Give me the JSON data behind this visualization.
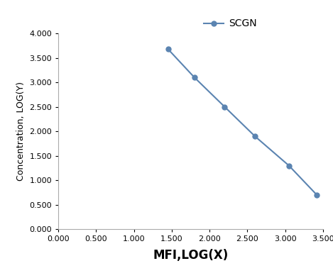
{
  "x": [
    1.45,
    1.8,
    2.2,
    2.6,
    3.05,
    3.42
  ],
  "y": [
    3.68,
    3.1,
    2.5,
    1.9,
    1.3,
    0.7
  ],
  "line_color": "#5b84b1",
  "marker": "o",
  "marker_size": 5,
  "line_width": 1.5,
  "legend_label": "SCGN",
  "xlabel": "MFI,LOG(X)",
  "ylabel": "Concentration, LOG(Y)",
  "xlim": [
    0.0,
    3.5
  ],
  "ylim": [
    0.0,
    4.0
  ],
  "xticks": [
    0.0,
    0.5,
    1.0,
    1.5,
    2.0,
    2.5,
    3.0,
    3.5
  ],
  "yticks": [
    0.0,
    0.5,
    1.0,
    1.5,
    2.0,
    2.5,
    3.0,
    3.5,
    4.0
  ],
  "xlabel_fontsize": 12,
  "ylabel_fontsize": 9,
  "tick_fontsize": 8,
  "legend_fontsize": 10,
  "background_color": "#ffffff",
  "spine_color": "#aaaaaa"
}
